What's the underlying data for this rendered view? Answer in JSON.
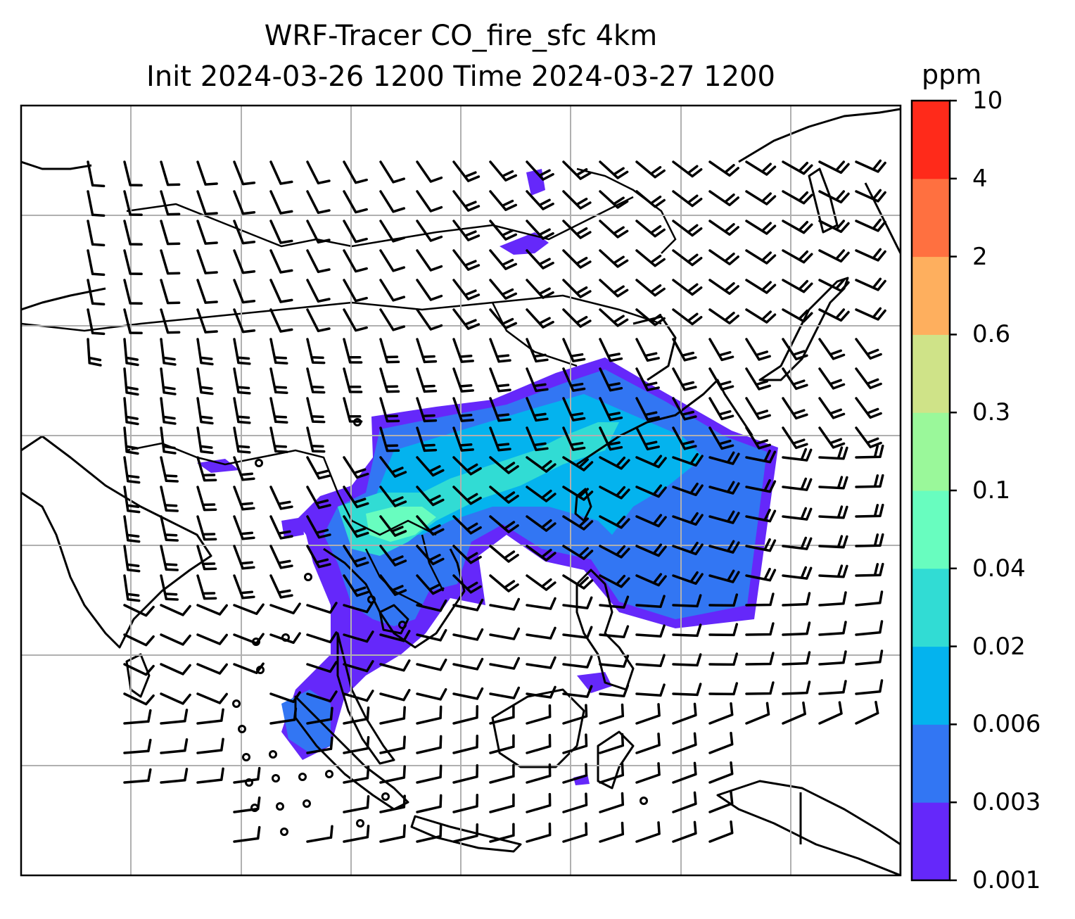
{
  "title_line1": "WRF-Tracer CO_fire_sfc 4km",
  "title_line2": "Init 2024-03-26 1200 Time 2024-03-27 1200",
  "colorbar": {
    "units": "ppm",
    "levels": [
      "0.001",
      "0.003",
      "0.006",
      "0.02",
      "0.04",
      "0.1",
      "0.3",
      "0.6",
      "2",
      "4",
      "10"
    ],
    "colors": [
      "#6528fa",
      "#3276f3",
      "#04b3ee",
      "#31dcd4",
      "#68fdbf",
      "#9af89a",
      "#cfe388",
      "#feaf5e",
      "#ff7040",
      "#ff2a1a"
    ]
  },
  "map": {
    "gridlines": true,
    "features": [
      "coastlines",
      "country-borders",
      "wind-barbs",
      "CO-tracer-plume"
    ]
  }
}
